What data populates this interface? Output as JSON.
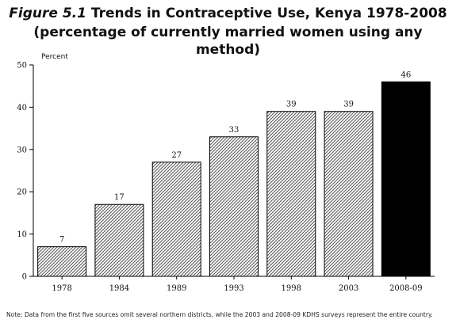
{
  "header": {
    "figure_label": "Figure 5.1",
    "title": "Trends in Contraceptive Use, Kenya 1978-2008",
    "subtitle": "(percentage of currently married women using any method)"
  },
  "note": "Note: Data from the first five sources omit several northern districts, while the 2003 and 2008-09 KDHS surveys represent the entire country.",
  "chart_data": {
    "type": "bar",
    "title": "Trends in Contraceptive Use, Kenya 1978-2008",
    "ylabel": "Percent",
    "xlabel": "",
    "categories": [
      "1978",
      "1984",
      "1989",
      "1993",
      "1998",
      "2003",
      "2008-09"
    ],
    "values": [
      7,
      17,
      27,
      33,
      39,
      39,
      46
    ],
    "ylim": [
      0,
      50
    ],
    "yticks": [
      0,
      10,
      20,
      30,
      40,
      50
    ],
    "grid": false,
    "colors": {
      "pattern_bar": "#555555",
      "solid_bar": "#000000",
      "axis": "#000000"
    }
  }
}
